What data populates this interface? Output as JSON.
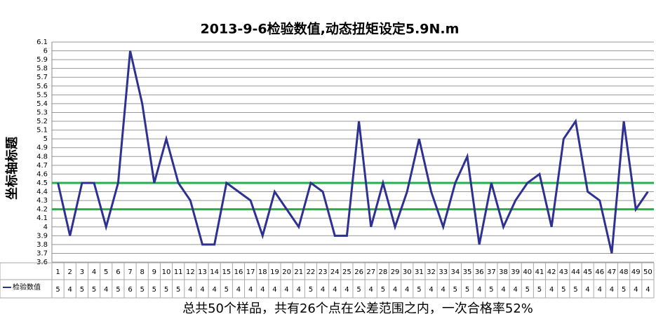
{
  "chart_data": {
    "type": "line",
    "title": "2013-9-6检验数值,动态扭矩设定5.9N.m",
    "y_label": "坐标轴标题",
    "note": "总共50个样品，共有26个点在公差范围之内，一次合格率52%",
    "categories": [
      "1",
      "2",
      "3",
      "4",
      "5",
      "6",
      "7",
      "8",
      "9",
      "10",
      "11",
      "12",
      "13",
      "14",
      "15",
      "16",
      "17",
      "18",
      "19",
      "20",
      "21",
      "22",
      "23",
      "24",
      "25",
      "26",
      "27",
      "28",
      "29",
      "30",
      "31",
      "32",
      "33",
      "34",
      "35",
      "36",
      "37",
      "38",
      "39",
      "40",
      "41",
      "42",
      "43",
      "44",
      "45",
      "46",
      "47",
      "48",
      "49",
      "50"
    ],
    "series": [
      {
        "name": "检验数值",
        "color": "#2e3192",
        "values": [
          4.5,
          3.9,
          4.5,
          4.5,
          4.0,
          4.5,
          6.0,
          5.4,
          4.5,
          5.0,
          4.5,
          4.3,
          3.8,
          3.8,
          4.5,
          4.4,
          4.3,
          3.9,
          4.4,
          4.2,
          4.0,
          4.5,
          4.4,
          3.9,
          3.9,
          5.2,
          4.0,
          4.5,
          4.0,
          4.4,
          5.0,
          4.4,
          4.0,
          4.5,
          4.8,
          3.8,
          4.5,
          4.0,
          4.3,
          4.5,
          4.6,
          4.0,
          5.0,
          5.2,
          4.4,
          4.3,
          3.7,
          5.2,
          4.2,
          4.4
        ],
        "value_labels": [
          "5",
          "4",
          "5",
          "5",
          "4",
          "5",
          "6",
          "5",
          "5",
          "5",
          "5",
          "4",
          "4",
          "4",
          "5",
          "4",
          "4",
          "4",
          "4",
          "4",
          "4",
          "5",
          "4",
          "4",
          "4",
          "5",
          "4",
          "5",
          "4",
          "4",
          "5",
          "4",
          "4",
          "5",
          "5",
          "4",
          "5",
          "4",
          "4",
          "5",
          "5",
          "4",
          "5",
          "5",
          "4",
          "4",
          "4",
          "5",
          "4",
          "4"
        ]
      }
    ],
    "reference_lines": [
      4.5,
      4.2
    ],
    "reference_color": "#22b14c",
    "ylim": [
      3.6,
      6.1
    ],
    "yticks": [
      3.6,
      3.7,
      3.8,
      3.9,
      4,
      4.1,
      4.2,
      4.3,
      4.4,
      4.5,
      4.6,
      4.7,
      4.8,
      4.9,
      5,
      5.1,
      5.2,
      5.3,
      5.4,
      5.5,
      5.6,
      5.7,
      5.8,
      5.9,
      6,
      6.1
    ],
    "grid": true
  }
}
